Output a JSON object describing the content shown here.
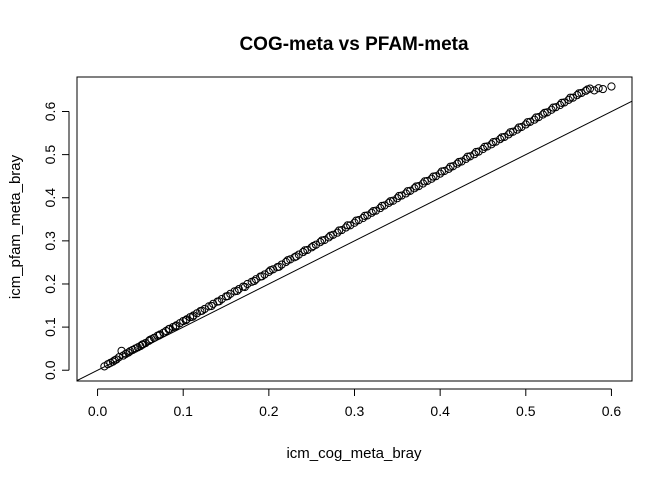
{
  "chart_data": {
    "type": "scatter",
    "title": "COG-meta vs PFAM-meta",
    "xlabel": "icm_cog_meta_bray",
    "ylabel": "icm_pfam_meta_bray",
    "xlim": [
      -0.024,
      0.624
    ],
    "ylim": [
      -0.025,
      0.68
    ],
    "xticks": [
      0.0,
      0.1,
      0.2,
      0.3,
      0.4,
      0.5,
      0.6
    ],
    "xtick_labels": [
      "0.0",
      "0.1",
      "0.2",
      "0.3",
      "0.4",
      "0.5",
      "0.6"
    ],
    "yticks": [
      0.0,
      0.1,
      0.2,
      0.3,
      0.4,
      0.5,
      0.6
    ],
    "ytick_labels": [
      "0.0",
      "0.1",
      "0.2",
      "0.3",
      "0.4",
      "0.5",
      "0.6"
    ],
    "grid": false,
    "marker": "open-circle",
    "reference_line": {
      "slope": 1,
      "intercept": 0
    },
    "series": [
      {
        "points": [
          [
            0.008,
            0.009
          ],
          [
            0.012,
            0.014
          ],
          [
            0.015,
            0.017
          ],
          [
            0.018,
            0.02
          ],
          [
            0.02,
            0.023
          ],
          [
            0.022,
            0.025
          ],
          [
            0.025,
            0.03
          ],
          [
            0.028,
            0.045
          ],
          [
            0.03,
            0.034
          ],
          [
            0.033,
            0.038
          ],
          [
            0.036,
            0.041
          ],
          [
            0.038,
            0.044
          ],
          [
            0.041,
            0.047
          ],
          [
            0.044,
            0.05
          ],
          [
            0.047,
            0.053
          ],
          [
            0.05,
            0.056
          ],
          [
            0.053,
            0.06
          ],
          [
            0.056,
            0.063
          ],
          [
            0.06,
            0.068
          ],
          [
            0.063,
            0.072
          ],
          [
            0.066,
            0.075
          ],
          [
            0.07,
            0.08
          ],
          [
            0.073,
            0.083
          ],
          [
            0.077,
            0.087
          ],
          [
            0.08,
            0.091
          ],
          [
            0.084,
            0.096
          ],
          [
            0.088,
            0.1
          ],
          [
            0.092,
            0.104
          ],
          [
            0.096,
            0.109
          ],
          [
            0.1,
            0.114
          ],
          [
            0.104,
            0.118
          ],
          [
            0.108,
            0.123
          ],
          [
            0.112,
            0.127
          ],
          [
            0.116,
            0.132
          ],
          [
            0.12,
            0.137
          ],
          [
            0.125,
            0.142
          ],
          [
            0.13,
            0.148
          ],
          [
            0.135,
            0.154
          ],
          [
            0.14,
            0.159
          ],
          [
            0.145,
            0.165
          ],
          [
            0.15,
            0.171
          ],
          [
            0.155,
            0.177
          ],
          [
            0.16,
            0.183
          ],
          [
            0.165,
            0.188
          ],
          [
            0.17,
            0.194
          ],
          [
            0.175,
            0.2
          ],
          [
            0.18,
            0.205
          ],
          [
            0.185,
            0.211
          ],
          [
            0.19,
            0.217
          ],
          [
            0.195,
            0.222
          ],
          [
            0.2,
            0.228
          ],
          [
            0.205,
            0.234
          ],
          [
            0.21,
            0.239
          ],
          [
            0.215,
            0.245
          ],
          [
            0.22,
            0.251
          ],
          [
            0.225,
            0.257
          ],
          [
            0.23,
            0.262
          ],
          [
            0.235,
            0.268
          ],
          [
            0.24,
            0.274
          ],
          [
            0.245,
            0.279
          ],
          [
            0.25,
            0.285
          ],
          [
            0.255,
            0.291
          ],
          [
            0.26,
            0.297
          ],
          [
            0.265,
            0.302
          ],
          [
            0.27,
            0.308
          ],
          [
            0.275,
            0.314
          ],
          [
            0.28,
            0.319
          ],
          [
            0.285,
            0.325
          ],
          [
            0.29,
            0.331
          ],
          [
            0.295,
            0.336
          ],
          [
            0.3,
            0.342
          ],
          [
            0.305,
            0.348
          ],
          [
            0.31,
            0.353
          ],
          [
            0.315,
            0.359
          ],
          [
            0.32,
            0.365
          ],
          [
            0.325,
            0.37
          ],
          [
            0.33,
            0.376
          ],
          [
            0.335,
            0.382
          ],
          [
            0.34,
            0.388
          ],
          [
            0.345,
            0.393
          ],
          [
            0.35,
            0.399
          ],
          [
            0.355,
            0.405
          ],
          [
            0.36,
            0.41
          ],
          [
            0.365,
            0.416
          ],
          [
            0.37,
            0.422
          ],
          [
            0.375,
            0.427
          ],
          [
            0.38,
            0.433
          ],
          [
            0.385,
            0.439
          ],
          [
            0.39,
            0.444
          ],
          [
            0.395,
            0.45
          ],
          [
            0.4,
            0.456
          ],
          [
            0.405,
            0.462
          ],
          [
            0.41,
            0.467
          ],
          [
            0.415,
            0.473
          ],
          [
            0.42,
            0.479
          ],
          [
            0.425,
            0.484
          ],
          [
            0.43,
            0.49
          ],
          [
            0.435,
            0.496
          ],
          [
            0.44,
            0.501
          ],
          [
            0.445,
            0.507
          ],
          [
            0.45,
            0.513
          ],
          [
            0.455,
            0.519
          ],
          [
            0.46,
            0.524
          ],
          [
            0.465,
            0.53
          ],
          [
            0.47,
            0.536
          ],
          [
            0.475,
            0.541
          ],
          [
            0.48,
            0.547
          ],
          [
            0.485,
            0.553
          ],
          [
            0.49,
            0.558
          ],
          [
            0.495,
            0.564
          ],
          [
            0.5,
            0.57
          ],
          [
            0.505,
            0.576
          ],
          [
            0.51,
            0.581
          ],
          [
            0.515,
            0.587
          ],
          [
            0.52,
            0.593
          ],
          [
            0.525,
            0.598
          ],
          [
            0.53,
            0.604
          ],
          [
            0.535,
            0.61
          ],
          [
            0.54,
            0.615
          ],
          [
            0.545,
            0.621
          ],
          [
            0.55,
            0.627
          ],
          [
            0.555,
            0.632
          ],
          [
            0.56,
            0.638
          ],
          [
            0.565,
            0.643
          ],
          [
            0.57,
            0.648
          ],
          [
            0.575,
            0.653
          ],
          [
            0.58,
            0.649
          ],
          [
            0.585,
            0.654
          ],
          [
            0.59,
            0.652
          ],
          [
            0.6,
            0.658
          ],
          [
            0.052,
            0.059
          ],
          [
            0.061,
            0.07
          ],
          [
            0.072,
            0.081
          ],
          [
            0.083,
            0.095
          ],
          [
            0.091,
            0.102
          ],
          [
            0.103,
            0.116
          ],
          [
            0.111,
            0.124
          ],
          [
            0.122,
            0.138
          ],
          [
            0.133,
            0.149
          ],
          [
            0.142,
            0.16
          ],
          [
            0.152,
            0.172
          ],
          [
            0.163,
            0.184
          ],
          [
            0.172,
            0.193
          ],
          [
            0.183,
            0.207
          ],
          [
            0.192,
            0.218
          ],
          [
            0.202,
            0.232
          ],
          [
            0.212,
            0.24
          ],
          [
            0.222,
            0.255
          ],
          [
            0.232,
            0.264
          ],
          [
            0.242,
            0.278
          ],
          [
            0.252,
            0.288
          ],
          [
            0.262,
            0.301
          ],
          [
            0.272,
            0.312
          ],
          [
            0.282,
            0.324
          ],
          [
            0.292,
            0.336
          ],
          [
            0.302,
            0.347
          ],
          [
            0.312,
            0.358
          ],
          [
            0.322,
            0.369
          ],
          [
            0.332,
            0.381
          ],
          [
            0.342,
            0.392
          ],
          [
            0.352,
            0.404
          ],
          [
            0.362,
            0.415
          ],
          [
            0.372,
            0.426
          ],
          [
            0.382,
            0.438
          ],
          [
            0.392,
            0.449
          ],
          [
            0.402,
            0.461
          ],
          [
            0.412,
            0.472
          ],
          [
            0.422,
            0.483
          ],
          [
            0.432,
            0.495
          ],
          [
            0.442,
            0.506
          ],
          [
            0.452,
            0.518
          ],
          [
            0.462,
            0.529
          ],
          [
            0.472,
            0.54
          ],
          [
            0.482,
            0.552
          ],
          [
            0.492,
            0.563
          ],
          [
            0.502,
            0.575
          ],
          [
            0.512,
            0.586
          ],
          [
            0.522,
            0.597
          ],
          [
            0.532,
            0.609
          ],
          [
            0.542,
            0.62
          ],
          [
            0.552,
            0.632
          ],
          [
            0.562,
            0.642
          ],
          [
            0.572,
            0.651
          ]
        ]
      }
    ]
  }
}
